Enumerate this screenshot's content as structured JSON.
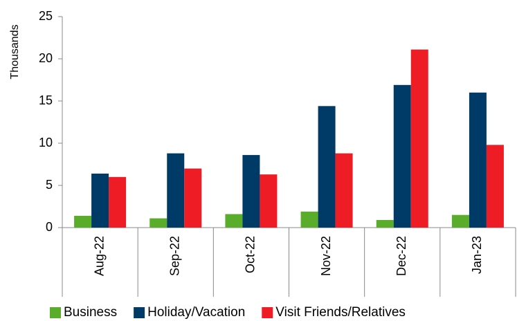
{
  "chart_data": {
    "type": "bar",
    "ylabel": "Thousands",
    "categories": [
      "Aug-22",
      "Sep-22",
      "Oct-22",
      "Nov-22",
      "Dec-22",
      "Jan-23"
    ],
    "series": [
      {
        "name": "Business",
        "color": "#5aad2a",
        "values": [
          1.4,
          1.1,
          1.6,
          1.9,
          0.9,
          1.5
        ]
      },
      {
        "name": "Holiday/Vacation",
        "color": "#003a66",
        "values": [
          6.4,
          8.8,
          8.6,
          14.4,
          16.9,
          16.0
        ]
      },
      {
        "name": "Visit Friends/Relatives",
        "color": "#ee1c25",
        "values": [
          6.0,
          7.0,
          6.3,
          8.8,
          21.1,
          9.8
        ]
      }
    ],
    "ylim": [
      0,
      25
    ],
    "yticks": [
      0,
      5,
      10,
      15,
      20,
      25
    ],
    "grid": false,
    "legend": "bottom"
  }
}
